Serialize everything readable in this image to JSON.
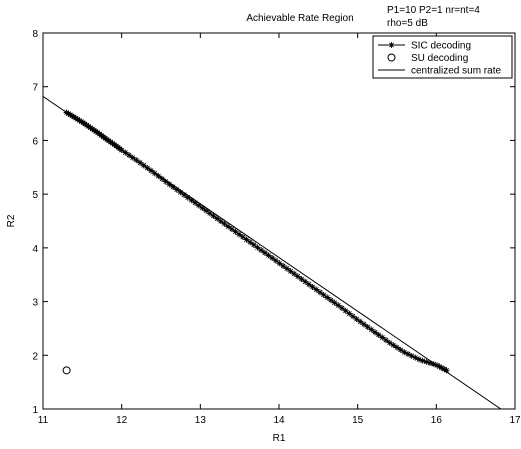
{
  "chart_data": {
    "type": "line",
    "title": "Achievable Rate Region",
    "annotation": [
      "P1=10 P2=1 nr=nt=4",
      "rho=5 dB"
    ],
    "xlabel": "R1",
    "ylabel": "R2",
    "xlim": [
      11,
      17
    ],
    "ylim": [
      1,
      8
    ],
    "x_ticks": [
      "11",
      "12",
      "13",
      "14",
      "15",
      "16",
      "17"
    ],
    "y_ticks": [
      "1",
      "2",
      "3",
      "4",
      "5",
      "6",
      "7",
      "8"
    ],
    "grid": false,
    "legend_position": "top-right",
    "series": [
      {
        "name": "SIC decoding",
        "marker": "asterisk",
        "x": [
          11.3,
          11.4,
          11.5,
          11.6,
          11.7,
          11.8,
          11.9,
          12.0,
          12.2,
          12.4,
          12.6,
          12.8,
          13.0,
          13.2,
          13.4,
          13.6,
          13.8,
          14.0,
          14.2,
          14.4,
          14.6,
          14.8,
          15.0,
          15.2,
          15.4,
          15.6,
          15.8,
          16.0,
          16.13
        ],
        "y": [
          6.52,
          6.43,
          6.34,
          6.24,
          6.14,
          6.03,
          5.93,
          5.82,
          5.62,
          5.41,
          5.19,
          4.98,
          4.77,
          4.56,
          4.35,
          4.14,
          3.93,
          3.72,
          3.51,
          3.3,
          3.09,
          2.88,
          2.66,
          2.45,
          2.24,
          2.05,
          1.91,
          1.82,
          1.72
        ]
      },
      {
        "name": "SU decoding",
        "marker": "circle",
        "x": [
          11.3
        ],
        "y": [
          1.72
        ]
      },
      {
        "name": "centralized sum rate",
        "marker": "none",
        "x": [
          11.0,
          16.82
        ],
        "y": [
          6.82,
          1.0
        ]
      }
    ]
  }
}
